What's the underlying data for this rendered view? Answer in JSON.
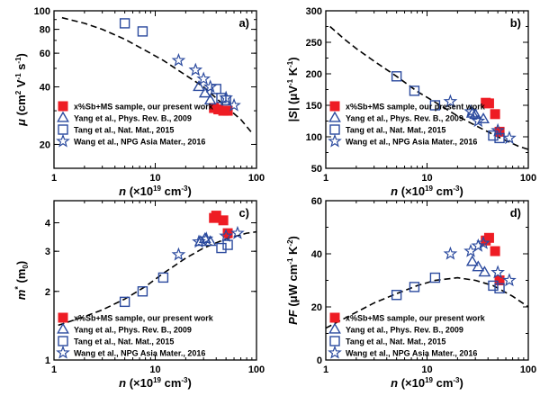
{
  "legend": [
    {
      "marker": "square-filled",
      "color": "#ee1c24",
      "label": "x%Sb+MS sample, our present work"
    },
    {
      "marker": "triangle-open",
      "color": "#2b4a9e",
      "label": "Yang et al., Phys. Rev. B., 2009"
    },
    {
      "marker": "square-open",
      "color": "#2b4a9e",
      "label": "Tang et al., Nat. Mat., 2015"
    },
    {
      "marker": "star-open",
      "color": "#2b4a9e",
      "label": "Wang et al., NPG Asia Mater., 2016"
    }
  ],
  "chart_data": [
    {
      "type": "scatter",
      "panel": "a)",
      "xlabel": "n (×10¹⁹ cm⁻³)",
      "ylabel": "μ (cm² V⁻¹ s⁻¹)",
      "xscale": "log",
      "yscale": "log",
      "xlim": [
        1,
        100
      ],
      "ylim": [
        15,
        100
      ],
      "xticks": [
        1,
        10,
        100
      ],
      "xtick_labels": [
        "1",
        "10",
        "100"
      ],
      "yticks": [
        20,
        40,
        60,
        80,
        100
      ],
      "ytick_labels": [
        "20",
        "40",
        "60",
        "80",
        "100"
      ],
      "legend_placement": "bottom-left",
      "series": [
        {
          "name": "x%Sb+MS sample, our present work",
          "marker": "square-filled",
          "x": [
            38,
            42,
            47,
            52
          ],
          "y": [
            31,
            30.5,
            30,
            30
          ]
        },
        {
          "name": "Yang et al., Phys. Rev. B., 2009",
          "marker": "triangle-open",
          "x": [
            27,
            31,
            35
          ],
          "y": [
            40,
            37,
            34
          ]
        },
        {
          "name": "Tang et al., Nat. Mat., 2015",
          "marker": "square-open",
          "x": [
            5,
            7.5,
            40,
            45,
            50
          ],
          "y": [
            86,
            78,
            39,
            35,
            34
          ]
        },
        {
          "name": "Wang et al., NPG Asia Mater., 2016",
          "marker": "star-open",
          "x": [
            17,
            25,
            30,
            35,
            50,
            60
          ],
          "y": [
            55,
            49,
            44,
            40,
            35,
            32
          ]
        }
      ],
      "fit_curve": {
        "style": "dashed",
        "x": [
          1.2,
          2,
          3,
          5,
          8,
          12,
          20,
          30,
          45,
          70,
          90
        ],
        "y": [
          92,
          86,
          80,
          71,
          62,
          55,
          46,
          40,
          33,
          27,
          23
        ]
      }
    },
    {
      "type": "scatter",
      "panel": "b)",
      "xlabel": "n (×10¹⁹ cm⁻³)",
      "ylabel": "|S| (μV⁻¹ K⁻¹)",
      "xscale": "log",
      "yscale": "linear",
      "xlim": [
        1,
        100
      ],
      "ylim": [
        50,
        300
      ],
      "xticks": [
        1,
        10,
        100
      ],
      "xtick_labels": [
        "1",
        "10",
        "100"
      ],
      "yticks": [
        50,
        100,
        150,
        200,
        250,
        300
      ],
      "ytick_labels": [
        "50",
        "100",
        "150",
        "200",
        "250",
        "300"
      ],
      "legend_placement": "bottom-left",
      "series": [
        {
          "name": "x%Sb+MS sample, our present work",
          "marker": "square-filled",
          "x": [
            38,
            41,
            47,
            52
          ],
          "y": [
            154,
            153,
            136,
            108
          ]
        },
        {
          "name": "Yang et al., Phys. Rev. B., 2009",
          "marker": "triangle-open",
          "x": [
            28,
            30,
            36
          ],
          "y": [
            137,
            135,
            128
          ]
        },
        {
          "name": "Tang et al., Nat. Mat., 2015",
          "marker": "square-open",
          "x": [
            5,
            7.5,
            12,
            45,
            52
          ],
          "y": [
            196,
            173,
            150,
            102,
            98
          ]
        },
        {
          "name": "Wang et al., NPG Asia Mater., 2016",
          "marker": "star-open",
          "x": [
            17,
            27,
            32,
            50,
            65
          ],
          "y": [
            156,
            140,
            125,
            110,
            98
          ]
        }
      ],
      "fit_curve": {
        "style": "dashed",
        "x": [
          1.1,
          1.5,
          2,
          3,
          5,
          8,
          12,
          20,
          30,
          50,
          80,
          100
        ],
        "y": [
          275,
          256,
          240,
          220,
          196,
          172,
          155,
          133,
          118,
          100,
          85,
          80
        ]
      }
    },
    {
      "type": "scatter",
      "panel": "c)",
      "xlabel": "n (×10¹⁹ cm⁻³)",
      "ylabel": "m* (m₀)",
      "xscale": "log",
      "yscale": "log",
      "xlim": [
        1,
        100
      ],
      "ylim": [
        1,
        5
      ],
      "xticks": [
        1,
        10,
        100
      ],
      "xtick_labels": [
        "1",
        "10",
        "100"
      ],
      "yticks": [
        1,
        2,
        3,
        4
      ],
      "ytick_labels": [
        "1",
        "2",
        "3",
        "4"
      ],
      "legend_placement": "bottom-left",
      "series": [
        {
          "name": "x%Sb+MS sample, our present work",
          "marker": "square-filled",
          "x": [
            38,
            40,
            47,
            52
          ],
          "y": [
            4.2,
            4.3,
            4.1,
            3.6
          ]
        },
        {
          "name": "Yang et al., Phys. Rev. B., 2009",
          "marker": "triangle-open",
          "x": [
            28,
            31,
            35
          ],
          "y": [
            3.3,
            3.4,
            3.3
          ]
        },
        {
          "name": "Tang et al., Nat. Mat., 2015",
          "marker": "square-open",
          "x": [
            5,
            7.5,
            12,
            45,
            52
          ],
          "y": [
            1.8,
            2.0,
            2.3,
            3.1,
            3.2
          ]
        },
        {
          "name": "Wang et al., NPG Asia Mater., 2016",
          "marker": "star-open",
          "x": [
            17,
            27,
            32,
            50,
            65
          ],
          "y": [
            2.9,
            3.3,
            3.4,
            3.5,
            3.6
          ]
        }
      ],
      "fit_curve": {
        "style": "dashed",
        "x": [
          1.1,
          2,
          3,
          5,
          8,
          12,
          20,
          30,
          50,
          80,
          100
        ],
        "y": [
          1.42,
          1.55,
          1.66,
          1.85,
          2.1,
          2.4,
          2.8,
          3.1,
          3.4,
          3.6,
          3.65
        ]
      }
    },
    {
      "type": "scatter",
      "panel": "d)",
      "xlabel": "n (×10¹⁹ cm⁻³)",
      "ylabel": "PF (μW cm⁻¹ K⁻²)",
      "xscale": "log",
      "yscale": "linear",
      "xlim": [
        1,
        100
      ],
      "ylim": [
        0,
        60
      ],
      "xticks": [
        1,
        10,
        100
      ],
      "xtick_labels": [
        "1",
        "10",
        "100"
      ],
      "yticks": [
        0,
        20,
        40,
        60
      ],
      "ytick_labels": [
        "0",
        "20",
        "40",
        "60"
      ],
      "legend_placement": "bottom-left",
      "series": [
        {
          "name": "x%Sb+MS sample, our present work",
          "marker": "square-filled",
          "x": [
            38,
            41,
            47,
            52
          ],
          "y": [
            45,
            46,
            41,
            30
          ]
        },
        {
          "name": "Yang et al., Phys. Rev. B., 2009",
          "marker": "triangle-open",
          "x": [
            28,
            32,
            37
          ],
          "y": [
            37,
            35,
            33
          ]
        },
        {
          "name": "Tang et al., Nat. Mat., 2015",
          "marker": "square-open",
          "x": [
            5,
            7.5,
            12,
            45,
            52
          ],
          "y": [
            24.5,
            27.5,
            31,
            28,
            27
          ]
        },
        {
          "name": "Wang et al., NPG Asia Mater., 2016",
          "marker": "star-open",
          "x": [
            17,
            27,
            32,
            36,
            50,
            65
          ],
          "y": [
            40,
            41,
            43,
            44,
            33,
            30
          ]
        }
      ],
      "fit_curve": {
        "style": "dashed",
        "x": [
          1,
          1.5,
          2,
          3,
          5,
          8,
          12,
          20,
          30,
          45,
          70,
          100
        ],
        "y": [
          12,
          15.5,
          18,
          21.5,
          25,
          28,
          30,
          31,
          30,
          28,
          24,
          20
        ]
      }
    }
  ]
}
